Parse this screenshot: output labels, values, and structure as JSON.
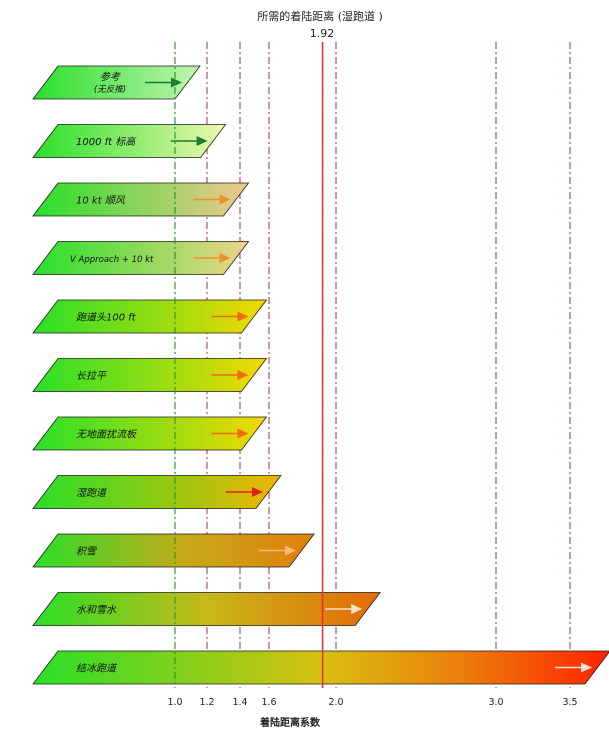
{
  "chart_data": {
    "type": "bar",
    "title": "所需的着陆距离 (湿跑道 )",
    "xlabel": "着陆距离系数",
    "marker": {
      "value": 1.92,
      "label": "1.92",
      "color": "#e8342a"
    },
    "reference_line": {
      "value": 1.0,
      "color": "#2e9a2e"
    },
    "gridlines": [
      1.2,
      1.4,
      1.6,
      2.0,
      3.0,
      3.5
    ],
    "ticks": [
      {
        "value": 1.0,
        "label": "1.0"
      },
      {
        "value": 1.2,
        "label": "1.2"
      },
      {
        "value": 1.4,
        "label": "1.4"
      },
      {
        "value": 1.6,
        "label": "1.6"
      },
      {
        "value": 2.0,
        "label": "2.0"
      },
      {
        "value": 3.0,
        "label": "3.0"
      },
      {
        "value": 3.5,
        "label": "3.5"
      }
    ],
    "xlim": [
      0.1,
      3.7
    ],
    "categories": [
      {
        "label": "参考",
        "sublabel": "(无反推)",
        "value": 1.0,
        "grad": "g-ref",
        "arrow": "#1f7a2e"
      },
      {
        "label": "1000 ft 标高",
        "value": 1.16,
        "grad": "g-elev",
        "arrow": "#1f7a2e"
      },
      {
        "label": "10 kt 顺风",
        "value": 1.3,
        "grad": "g-tail",
        "arrow": "#f0902a"
      },
      {
        "label": "V Approach + 10 kt",
        "value": 1.3,
        "grad": "g-vapp",
        "arrow": "#f0902a",
        "small": true
      },
      {
        "label": "跑道头100 ft",
        "value": 1.41,
        "grad": "g-yel",
        "arrow": "#f06a14"
      },
      {
        "label": "长拉平",
        "value": 1.41,
        "grad": "g-yel",
        "arrow": "#f06a14"
      },
      {
        "label": "无地面扰流板",
        "value": 1.41,
        "grad": "g-yel",
        "arrow": "#f06a14"
      },
      {
        "label": "湿跑道",
        "value": 1.51,
        "grad": "g-wet",
        "arrow": "#e81e14"
      },
      {
        "label": "积雪",
        "value": 1.72,
        "grad": "g-snow",
        "arrow": "#ffb877"
      },
      {
        "label": "水和雪水",
        "value": 2.12,
        "grad": "g-slush",
        "arrow": "#ffe0c8"
      },
      {
        "label": "结冰跑道",
        "value": 3.6,
        "grad": "g-ice",
        "arrow": "#ffe0d0"
      }
    ],
    "colors": {
      "green": "#28e028",
      "yellow": "#f2dc00",
      "orange": "#e0820a",
      "red": "#ff2a00",
      "grid": "#a0304a"
    }
  }
}
